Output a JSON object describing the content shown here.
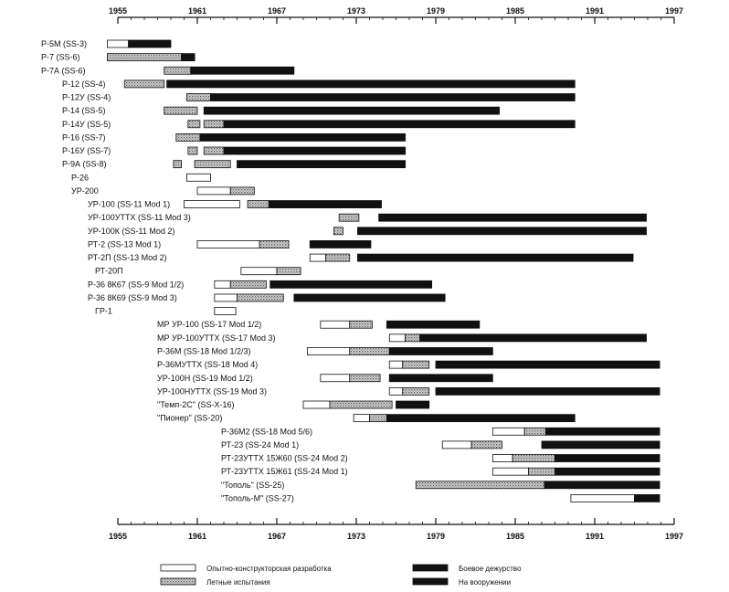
{
  "chart_data": {
    "type": "gantt",
    "x_axis": {
      "min": 1955,
      "max": 1997,
      "ticks": [
        1955,
        1961,
        1967,
        1973,
        1979,
        1985,
        1991,
        1997
      ],
      "tick_labels": [
        "1955",
        "1961",
        "1967",
        "1973",
        "1979",
        "1985",
        "1991",
        "1997"
      ],
      "position": "top-and-bottom"
    },
    "stages": [
      {
        "key": "dev",
        "label": "Опытно-конструкторская разработка",
        "fill": "#ffffff",
        "pattern": "outline"
      },
      {
        "key": "test",
        "label": "Летные испытания",
        "fill": "#bdbdbd",
        "pattern": "dotted"
      },
      {
        "key": "duty",
        "label": "Боевое дежурство",
        "fill": "#111111",
        "pattern": "solid"
      },
      {
        "key": "service",
        "label": "На вооружении",
        "fill": "#111111",
        "pattern": "solid"
      }
    ],
    "legend_position": "bottom",
    "rows": [
      {
        "label": "Р-5М (SS-3)",
        "indent": 0,
        "segments": [
          {
            "stage": "dev",
            "start": 1954.2,
            "end": 1955.8
          },
          {
            "stage": "service",
            "start": 1955.8,
            "end": 1959.0
          }
        ]
      },
      {
        "label": "Р-7 (SS-6)",
        "indent": 0,
        "segments": [
          {
            "stage": "test",
            "start": 1954.2,
            "end": 1959.8
          },
          {
            "stage": "service",
            "start": 1959.8,
            "end": 1960.8
          }
        ]
      },
      {
        "label": "Р-7А (SS-6)",
        "indent": 0,
        "segments": [
          {
            "stage": "test",
            "start": 1958.5,
            "end": 1960.5
          },
          {
            "stage": "service",
            "start": 1960.5,
            "end": 1968.3
          }
        ]
      },
      {
        "label": "Р-12 (SS-4)",
        "indent": 1,
        "segments": [
          {
            "stage": "test",
            "start": 1955.5,
            "end": 1958.5
          },
          {
            "stage": "service",
            "start": 1958.7,
            "end": 1989.5
          }
        ]
      },
      {
        "label": "Р-12У (SS-4)",
        "indent": 1,
        "segments": [
          {
            "stage": "test",
            "start": 1960.2,
            "end": 1962.0
          },
          {
            "stage": "service",
            "start": 1962.0,
            "end": 1989.5
          }
        ]
      },
      {
        "label": "Р-14 (SS-5)",
        "indent": 1,
        "segments": [
          {
            "stage": "test",
            "start": 1958.5,
            "end": 1961.0
          },
          {
            "stage": "service",
            "start": 1961.5,
            "end": 1983.8
          }
        ]
      },
      {
        "label": "Р-14У (SS-5)",
        "indent": 1,
        "segments": [
          {
            "stage": "test",
            "start": 1960.3,
            "end": 1961.2
          },
          {
            "stage": "test",
            "start": 1961.5,
            "end": 1963.0
          },
          {
            "stage": "service",
            "start": 1963.0,
            "end": 1989.5
          }
        ]
      },
      {
        "label": "Р-16 (SS-7)",
        "indent": 1,
        "segments": [
          {
            "stage": "test",
            "start": 1959.4,
            "end": 1961.2
          },
          {
            "stage": "service",
            "start": 1961.2,
            "end": 1976.7
          }
        ]
      },
      {
        "label": "Р-16У (SS-7)",
        "indent": 1,
        "segments": [
          {
            "stage": "test",
            "start": 1960.3,
            "end": 1961.0
          },
          {
            "stage": "test",
            "start": 1961.5,
            "end": 1963.0
          },
          {
            "stage": "service",
            "start": 1963.0,
            "end": 1976.7
          }
        ]
      },
      {
        "label": "Р-9А (SS-8)",
        "indent": 1,
        "segments": [
          {
            "stage": "test",
            "start": 1959.2,
            "end": 1959.8
          },
          {
            "stage": "test",
            "start": 1960.8,
            "end": 1963.5
          },
          {
            "stage": "service",
            "start": 1964.0,
            "end": 1976.7
          }
        ]
      },
      {
        "label": "Р-26",
        "indent": 2,
        "segments": [
          {
            "stage": "dev",
            "start": 1960.2,
            "end": 1962.0
          }
        ]
      },
      {
        "label": "УР-200",
        "indent": 2,
        "segments": [
          {
            "stage": "dev",
            "start": 1961.0,
            "end": 1963.5
          },
          {
            "stage": "test",
            "start": 1963.5,
            "end": 1965.3
          }
        ]
      },
      {
        "label": "УР-100 (SS-11 Mod 1)",
        "indent": 3,
        "segments": [
          {
            "stage": "dev",
            "start": 1960.0,
            "end": 1964.2
          },
          {
            "stage": "test",
            "start": 1964.8,
            "end": 1966.4
          },
          {
            "stage": "service",
            "start": 1966.4,
            "end": 1974.9
          }
        ]
      },
      {
        "label": "УР-100УТТХ (SS-11 Mod 3)",
        "indent": 3,
        "segments": [
          {
            "stage": "test",
            "start": 1971.7,
            "end": 1973.2
          },
          {
            "stage": "service",
            "start": 1974.7,
            "end": 1994.9
          }
        ]
      },
      {
        "label": "УР-100К (SS-11 Mod 2)",
        "indent": 3,
        "segments": [
          {
            "stage": "test",
            "start": 1971.3,
            "end": 1972.0
          },
          {
            "stage": "service",
            "start": 1973.1,
            "end": 1994.9
          }
        ]
      },
      {
        "label": "РТ-2 (SS-13 Mod 1)",
        "indent": 3,
        "segments": [
          {
            "stage": "dev",
            "start": 1961.0,
            "end": 1965.7
          },
          {
            "stage": "test",
            "start": 1965.7,
            "end": 1967.9
          },
          {
            "stage": "service",
            "start": 1969.5,
            "end": 1974.1
          }
        ]
      },
      {
        "label": "РТ-2П (SS-13 Mod 2)",
        "indent": 3,
        "segments": [
          {
            "stage": "dev",
            "start": 1969.5,
            "end": 1970.7
          },
          {
            "stage": "test",
            "start": 1970.7,
            "end": 1972.5
          },
          {
            "stage": "service",
            "start": 1973.1,
            "end": 1993.9
          }
        ]
      },
      {
        "label": "РТ-20П",
        "indent": 4,
        "segments": [
          {
            "stage": "dev",
            "start": 1964.3,
            "end": 1967.0
          },
          {
            "stage": "test",
            "start": 1967.0,
            "end": 1968.8
          }
        ]
      },
      {
        "label": "Р-36 8К67 (SS-9 Mod 1/2)",
        "indent": 3,
        "segments": [
          {
            "stage": "dev",
            "start": 1962.3,
            "end": 1963.5
          },
          {
            "stage": "test",
            "start": 1963.5,
            "end": 1966.2
          },
          {
            "stage": "service",
            "start": 1966.5,
            "end": 1978.7
          }
        ]
      },
      {
        "label": "Р-36 8К69 (SS-9 Mod 3)",
        "indent": 3,
        "segments": [
          {
            "stage": "dev",
            "start": 1962.3,
            "end": 1964.0
          },
          {
            "stage": "test",
            "start": 1964.0,
            "end": 1967.5
          },
          {
            "stage": "service",
            "start": 1968.3,
            "end": 1979.7
          }
        ]
      },
      {
        "label": "ГР-1",
        "indent": 4,
        "segments": [
          {
            "stage": "dev",
            "start": 1962.3,
            "end": 1963.9
          }
        ]
      },
      {
        "label": "МР УР-100 (SS-17 Mod 1/2)",
        "indent": 5,
        "segments": [
          {
            "stage": "dev",
            "start": 1970.3,
            "end": 1972.5
          },
          {
            "stage": "test",
            "start": 1972.5,
            "end": 1974.2
          },
          {
            "stage": "service",
            "start": 1975.3,
            "end": 1982.3
          }
        ]
      },
      {
        "label": "МР УР-100УТТХ (SS-17 Mod 3)",
        "indent": 5,
        "segments": [
          {
            "stage": "dev",
            "start": 1975.5,
            "end": 1976.7
          },
          {
            "stage": "test",
            "start": 1976.7,
            "end": 1977.8
          },
          {
            "stage": "service",
            "start": 1977.8,
            "end": 1994.9
          }
        ]
      },
      {
        "label": "Р-36М (SS-18 Mod 1/2/3)",
        "indent": 5,
        "segments": [
          {
            "stage": "dev",
            "start": 1969.3,
            "end": 1972.5
          },
          {
            "stage": "test",
            "start": 1972.5,
            "end": 1975.5
          },
          {
            "stage": "service",
            "start": 1975.5,
            "end": 1983.3
          }
        ]
      },
      {
        "label": "Р-36МУТТХ (SS-18 Mod 4)",
        "indent": 5,
        "segments": [
          {
            "stage": "dev",
            "start": 1975.5,
            "end": 1976.5
          },
          {
            "stage": "test",
            "start": 1976.5,
            "end": 1978.5
          },
          {
            "stage": "service",
            "start": 1979.0,
            "end": 1995.9
          }
        ]
      },
      {
        "label": "УР-100Н (SS-19 Mod 1/2)",
        "indent": 5,
        "segments": [
          {
            "stage": "dev",
            "start": 1970.3,
            "end": 1972.5
          },
          {
            "stage": "test",
            "start": 1972.5,
            "end": 1974.8
          },
          {
            "stage": "service",
            "start": 1975.5,
            "end": 1983.3
          }
        ]
      },
      {
        "label": "УР-100НУТТХ (SS-19 Mod 3)",
        "indent": 5,
        "segments": [
          {
            "stage": "dev",
            "start": 1975.5,
            "end": 1976.5
          },
          {
            "stage": "test",
            "start": 1976.5,
            "end": 1978.5
          },
          {
            "stage": "service",
            "start": 1979.0,
            "end": 1995.9
          }
        ]
      },
      {
        "label": "\"Темп-2С\" (SS-X-16)",
        "indent": 5,
        "segments": [
          {
            "stage": "dev",
            "start": 1969.0,
            "end": 1971.0
          },
          {
            "stage": "test",
            "start": 1971.0,
            "end": 1975.7
          },
          {
            "stage": "service",
            "start": 1976.0,
            "end": 1978.5
          }
        ]
      },
      {
        "label": "\"Пионер\" (SS-20)",
        "indent": 5,
        "segments": [
          {
            "stage": "dev",
            "start": 1972.8,
            "end": 1974.0
          },
          {
            "stage": "test",
            "start": 1974.0,
            "end": 1975.3
          },
          {
            "stage": "service",
            "start": 1975.3,
            "end": 1989.5
          }
        ]
      },
      {
        "label": "Р-36М2 (SS-18 Mod 5/6)",
        "indent": 6,
        "segments": [
          {
            "stage": "dev",
            "start": 1983.3,
            "end": 1985.7
          },
          {
            "stage": "test",
            "start": 1985.7,
            "end": 1987.3
          },
          {
            "stage": "service",
            "start": 1987.3,
            "end": 1995.9
          }
        ]
      },
      {
        "label": "РТ-23 (SS-24 Mod 1)",
        "indent": 6,
        "segments": [
          {
            "stage": "dev",
            "start": 1979.5,
            "end": 1981.7
          },
          {
            "stage": "test",
            "start": 1981.7,
            "end": 1984.0
          },
          {
            "stage": "service",
            "start": 1987.0,
            "end": 1995.9
          }
        ]
      },
      {
        "label": "РТ-23УТТХ 15Ж60 (SS-24 Mod 2)",
        "indent": 6,
        "segments": [
          {
            "stage": "dev",
            "start": 1983.3,
            "end": 1984.8
          },
          {
            "stage": "test",
            "start": 1984.8,
            "end": 1988.0
          },
          {
            "stage": "service",
            "start": 1988.0,
            "end": 1995.9
          }
        ]
      },
      {
        "label": "РТ-23УТТХ 15Ж61 (SS-24 Mod 1)",
        "indent": 6,
        "segments": [
          {
            "stage": "dev",
            "start": 1983.3,
            "end": 1986.0
          },
          {
            "stage": "test",
            "start": 1986.0,
            "end": 1988.0
          },
          {
            "stage": "service",
            "start": 1988.0,
            "end": 1995.9
          }
        ]
      },
      {
        "label": "\"Тополь\" (SS-25)",
        "indent": 6,
        "segments": [
          {
            "stage": "test",
            "start": 1977.5,
            "end": 1987.2
          },
          {
            "stage": "service",
            "start": 1987.2,
            "end": 1995.9
          }
        ]
      },
      {
        "label": "\"Тополь-М\" (SS-27)",
        "indent": 6,
        "segments": [
          {
            "stage": "dev",
            "start": 1989.2,
            "end": 1994.0
          },
          {
            "stage": "service",
            "start": 1994.0,
            "end": 1995.9
          }
        ]
      }
    ]
  }
}
